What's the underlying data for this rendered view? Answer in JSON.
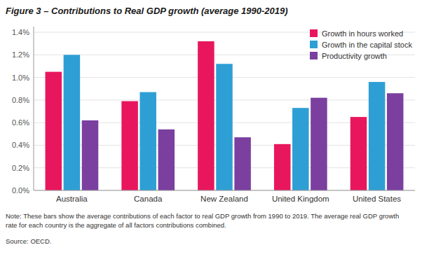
{
  "chart_data": {
    "type": "bar",
    "title": "Figure 3 – Contributions to Real GDP growth (average 1990-2019)",
    "categories": [
      "Australia",
      "Canada",
      "New Zealand",
      "United Kingdom",
      "United States"
    ],
    "series": [
      {
        "name": "Growth in hours worked",
        "color": "#E8175D",
        "values": [
          1.05,
          0.79,
          1.32,
          0.41,
          0.65
        ]
      },
      {
        "name": "Growth in the capital stock",
        "color": "#2E9FD4",
        "values": [
          1.2,
          0.87,
          1.12,
          0.73,
          0.96
        ]
      },
      {
        "name": "Productivity growth",
        "color": "#7B3FA0",
        "values": [
          0.62,
          0.54,
          0.47,
          0.82,
          0.86
        ]
      }
    ],
    "ylim": [
      0,
      1.45
    ],
    "yticks": [
      {
        "value": 0.0,
        "label": "0.0%"
      },
      {
        "value": 0.2,
        "label": "0.2%"
      },
      {
        "value": 0.4,
        "label": "0.4%"
      },
      {
        "value": 0.6,
        "label": "0.6%"
      },
      {
        "value": 0.8,
        "label": "0.8%"
      },
      {
        "value": 1.0,
        "label": "1.0%"
      },
      {
        "value": 1.2,
        "label": "1.2%"
      },
      {
        "value": 1.4,
        "label": "1.4%"
      }
    ],
    "grid": true,
    "legend": "upper right",
    "annotations": [
      "Note: These bars show the average contributions of each factor to real GDP growth from 1990 to 2019. The average real GDP growth",
      "rate for each country is the aggregate of all factors contributions combined.",
      "Source: OECD."
    ]
  }
}
